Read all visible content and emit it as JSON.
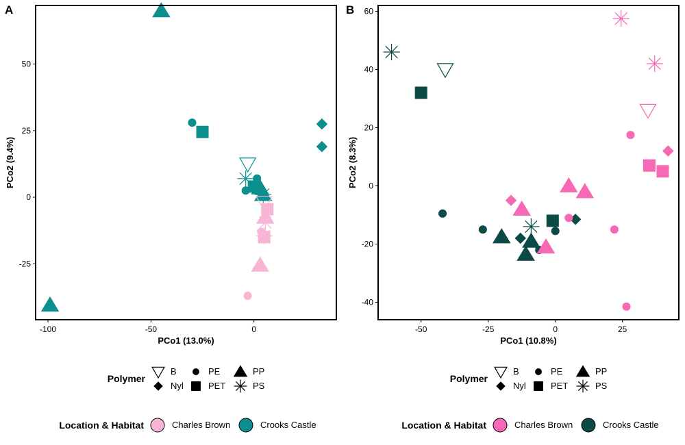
{
  "figure": {
    "panel_letters": [
      "A",
      "B"
    ],
    "polymer_legend_title": "Polymer",
    "polymer_legend_labels": [
      "B",
      "PE",
      "PP",
      "Nyl",
      "PET",
      "PS"
    ],
    "location_legend_title": "Location & Habitat",
    "location_legend_labels": [
      "Charles Brown",
      "Crooks Castle"
    ]
  },
  "chart_data": [
    {
      "type": "scatter",
      "panel": "A",
      "xlabel": "PCo1 (13.0%)",
      "ylabel": "PCo2 (9.4%)",
      "xlim": [
        -106,
        40
      ],
      "ylim": [
        -46,
        72
      ],
      "x_ticks": [
        -100,
        -50,
        0
      ],
      "x_tick_labels": [
        "-100",
        "-50",
        "0"
      ],
      "y_ticks": [
        -25,
        0,
        25,
        50
      ],
      "y_tick_labels": [
        "-25",
        "0",
        "25",
        "50"
      ],
      "grid": false,
      "colors": {
        "Charles Brown": "#f7b6d6",
        "Crooks Castle": "#0b8f8f"
      },
      "points": [
        {
          "x": -45,
          "y": 70,
          "polymer": "PP",
          "group": "Crooks Castle"
        },
        {
          "x": -99,
          "y": -40.5,
          "polymer": "PP",
          "group": "Crooks Castle"
        },
        {
          "x": -30,
          "y": 28,
          "polymer": "PE",
          "group": "Crooks Castle"
        },
        {
          "x": -25,
          "y": 24.5,
          "polymer": "PET",
          "group": "Crooks Castle"
        },
        {
          "x": 33,
          "y": 27.5,
          "polymer": "Nyl",
          "group": "Crooks Castle"
        },
        {
          "x": 33,
          "y": 19,
          "polymer": "Nyl",
          "group": "Crooks Castle"
        },
        {
          "x": -3,
          "y": 12.5,
          "polymer": "B",
          "group": "Crooks Castle"
        },
        {
          "x": -4,
          "y": 7,
          "polymer": "PS",
          "group": "Crooks Castle"
        },
        {
          "x": -4,
          "y": 2.5,
          "polymer": "PE",
          "group": "Crooks Castle"
        },
        {
          "x": 1.5,
          "y": 7,
          "polymer": "PE",
          "group": "Crooks Castle"
        },
        {
          "x": 0,
          "y": 4,
          "polymer": "PET",
          "group": "Crooks Castle"
        },
        {
          "x": 3,
          "y": 3.5,
          "polymer": "PP",
          "group": "Crooks Castle"
        },
        {
          "x": 4.5,
          "y": 1,
          "polymer": "PS",
          "group": "Crooks Castle"
        },
        {
          "x": 4.5,
          "y": 1,
          "polymer": "PP",
          "group": "Crooks Castle"
        },
        {
          "x": 5,
          "y": -2,
          "polymer": "B",
          "group": "Charles Brown"
        },
        {
          "x": 5.5,
          "y": -5.5,
          "polymer": "PE",
          "group": "Charles Brown"
        },
        {
          "x": 6.5,
          "y": -4.5,
          "polymer": "PET",
          "group": "Charles Brown"
        },
        {
          "x": 5.5,
          "y": -7.5,
          "polymer": "PP",
          "group": "Charles Brown"
        },
        {
          "x": 5.5,
          "y": -9.5,
          "polymer": "PS",
          "group": "Charles Brown"
        },
        {
          "x": 3.5,
          "y": -13,
          "polymer": "PE",
          "group": "Charles Brown"
        },
        {
          "x": 5,
          "y": -14.5,
          "polymer": "PS",
          "group": "Charles Brown"
        },
        {
          "x": 5,
          "y": -15,
          "polymer": "PET",
          "group": "Charles Brown"
        },
        {
          "x": 3,
          "y": -25.5,
          "polymer": "PP",
          "group": "Charles Brown"
        },
        {
          "x": -3,
          "y": -37,
          "polymer": "PE",
          "group": "Charles Brown"
        }
      ]
    },
    {
      "type": "scatter",
      "panel": "B",
      "xlabel": "PCo1 (10.8%)",
      "ylabel": "PCo2 (8.3%)",
      "xlim": [
        -66,
        46
      ],
      "ylim": [
        -46,
        62
      ],
      "x_ticks": [
        -50,
        -25,
        0,
        25
      ],
      "x_tick_labels": [
        "-50",
        "-25",
        "0",
        "25"
      ],
      "y_ticks": [
        -40,
        -20,
        0,
        20,
        40,
        60
      ],
      "y_tick_labels": [
        "-40",
        "-20",
        "0",
        "20",
        "40",
        "60"
      ],
      "grid": false,
      "colors": {
        "Charles Brown": "#f768b5",
        "Crooks Castle": "#0b4a47"
      },
      "points": [
        {
          "x": -61,
          "y": 46,
          "polymer": "PS",
          "group": "Crooks Castle"
        },
        {
          "x": -41,
          "y": 40,
          "polymer": "B",
          "group": "Crooks Castle"
        },
        {
          "x": -50,
          "y": 32,
          "polymer": "PET",
          "group": "Crooks Castle"
        },
        {
          "x": -42,
          "y": -9.5,
          "polymer": "PE",
          "group": "Crooks Castle"
        },
        {
          "x": -27,
          "y": -15,
          "polymer": "PE",
          "group": "Crooks Castle"
        },
        {
          "x": -20,
          "y": -17.5,
          "polymer": "PP",
          "group": "Crooks Castle"
        },
        {
          "x": -13,
          "y": -18,
          "polymer": "Nyl",
          "group": "Crooks Castle"
        },
        {
          "x": -9,
          "y": -14,
          "polymer": "PS",
          "group": "Crooks Castle"
        },
        {
          "x": -9,
          "y": -19,
          "polymer": "PP",
          "group": "Crooks Castle"
        },
        {
          "x": -11,
          "y": -23.5,
          "polymer": "PP",
          "group": "Crooks Castle"
        },
        {
          "x": -6,
          "y": -22,
          "polymer": "PE",
          "group": "Crooks Castle"
        },
        {
          "x": -1,
          "y": -12,
          "polymer": "PET",
          "group": "Crooks Castle"
        },
        {
          "x": 0,
          "y": -15.5,
          "polymer": "PE",
          "group": "Crooks Castle"
        },
        {
          "x": 7.5,
          "y": -11.5,
          "polymer": "Nyl",
          "group": "Crooks Castle"
        },
        {
          "x": 24.5,
          "y": 57.5,
          "polymer": "PS",
          "group": "Charles Brown"
        },
        {
          "x": 37,
          "y": 42,
          "polymer": "PS",
          "group": "Charles Brown"
        },
        {
          "x": 34.5,
          "y": 26,
          "polymer": "B",
          "group": "Charles Brown"
        },
        {
          "x": 28,
          "y": 17.5,
          "polymer": "PE",
          "group": "Charles Brown"
        },
        {
          "x": 42,
          "y": 12,
          "polymer": "Nyl",
          "group": "Charles Brown"
        },
        {
          "x": 35,
          "y": 7,
          "polymer": "PET",
          "group": "Charles Brown"
        },
        {
          "x": 40,
          "y": 5,
          "polymer": "PET",
          "group": "Charles Brown"
        },
        {
          "x": 5,
          "y": 0,
          "polymer": "PP",
          "group": "Charles Brown"
        },
        {
          "x": 11,
          "y": -2,
          "polymer": "PP",
          "group": "Charles Brown"
        },
        {
          "x": -16.5,
          "y": -5,
          "polymer": "Nyl",
          "group": "Charles Brown"
        },
        {
          "x": -12.5,
          "y": -8,
          "polymer": "PP",
          "group": "Charles Brown"
        },
        {
          "x": 5,
          "y": -11,
          "polymer": "PE",
          "group": "Charles Brown"
        },
        {
          "x": -3.5,
          "y": -21,
          "polymer": "PP",
          "group": "Charles Brown"
        },
        {
          "x": 22,
          "y": -15,
          "polymer": "PE",
          "group": "Charles Brown"
        },
        {
          "x": 26.5,
          "y": -41.5,
          "polymer": "PE",
          "group": "Charles Brown"
        }
      ]
    }
  ]
}
